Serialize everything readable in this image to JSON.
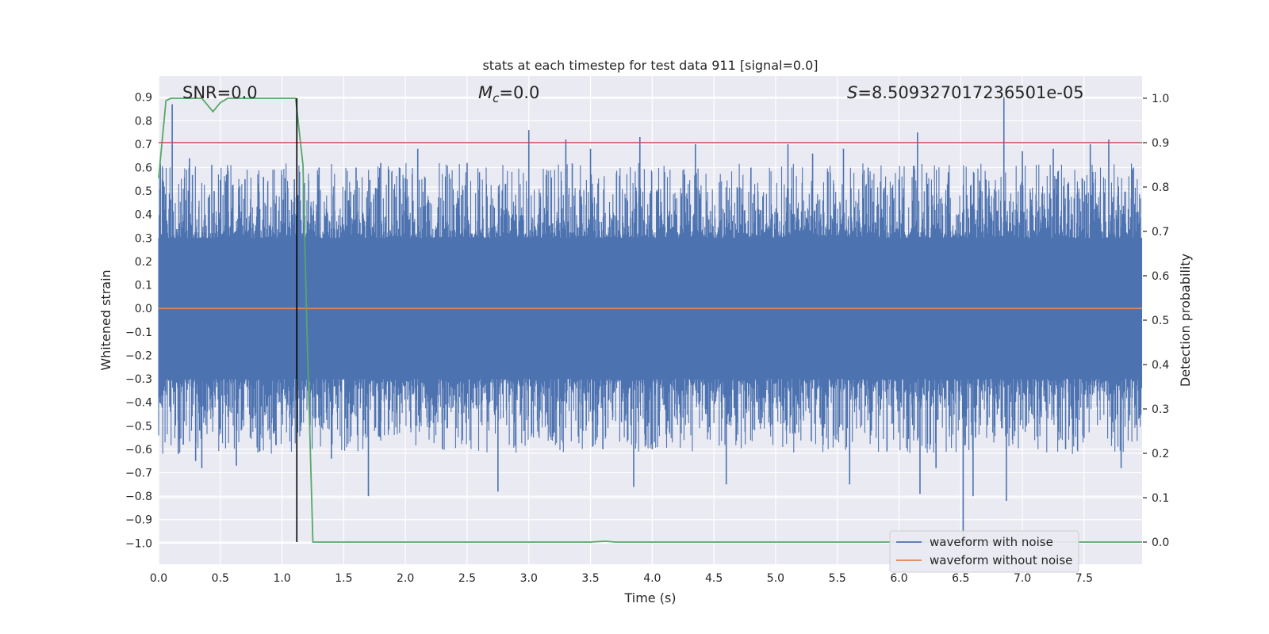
{
  "chart_data": {
    "type": "line",
    "title": "stats at each timestep for test data 911 [signal=0.0]",
    "xlabel": "Time (s)",
    "ylabel_left": "Whitened strain",
    "ylabel_right": "Detection probability",
    "xlim": [
      0,
      7.97
    ],
    "ylim_left": [
      -1.09,
      0.99
    ],
    "ylim_right": [
      -0.05,
      1.05
    ],
    "x_ticks": [
      "0.0",
      "0.5",
      "1.0",
      "1.5",
      "2.0",
      "2.5",
      "3.0",
      "3.5",
      "4.0",
      "4.5",
      "5.0",
      "5.5",
      "6.0",
      "6.5",
      "7.0",
      "7.5"
    ],
    "x_tick_values": [
      0,
      0.5,
      1,
      1.5,
      2,
      2.5,
      3,
      3.5,
      4,
      4.5,
      5,
      5.5,
      6,
      6.5,
      7,
      7.5
    ],
    "y_left_ticks": [
      "0.9",
      "0.8",
      "0.7",
      "0.6",
      "0.5",
      "0.4",
      "0.3",
      "0.2",
      "0.1",
      "0.0",
      "−0.1",
      "−0.2",
      "−0.3",
      "−0.4",
      "−0.5",
      "−0.6",
      "−0.7",
      "−0.8",
      "−0.9",
      "−1.0"
    ],
    "y_left_tick_values": [
      0.9,
      0.8,
      0.7,
      0.6,
      0.5,
      0.4,
      0.3,
      0.2,
      0.1,
      0.0,
      -0.1,
      -0.2,
      -0.3,
      -0.4,
      -0.5,
      -0.6,
      -0.7,
      -0.8,
      -0.9,
      -1.0
    ],
    "y_right_ticks": [
      "1.0",
      "0.9",
      "0.8",
      "0.7",
      "0.6",
      "0.5",
      "0.4",
      "0.3",
      "0.2",
      "0.1",
      "0.0"
    ],
    "y_right_tick_values": [
      1.0,
      0.9,
      0.8,
      0.7,
      0.6,
      0.5,
      0.4,
      0.3,
      0.2,
      0.1,
      0.0
    ],
    "annotations": {
      "snr": "SNR=0.0",
      "mc_symbol": "M",
      "mc_sub": "c",
      "mc_value": "=0.0",
      "s_symbol": "S",
      "s_value": "=8.509327017236501e-05"
    },
    "series": [
      {
        "name": "waveform with noise",
        "color": "#4c72b0",
        "axis": "left",
        "kind": "noise",
        "band": 0.3,
        "outliers": [
          [
            0.03,
            0.55
          ],
          [
            0.11,
            0.87
          ],
          [
            0.16,
            -0.62
          ],
          [
            0.2,
            -0.58
          ],
          [
            0.25,
            0.64
          ],
          [
            0.3,
            -0.65
          ],
          [
            0.35,
            -0.68
          ],
          [
            0.45,
            0.5
          ],
          [
            0.55,
            0.57
          ],
          [
            0.63,
            -0.67
          ],
          [
            0.7,
            0.55
          ],
          [
            0.85,
            0.56
          ],
          [
            0.95,
            -0.58
          ],
          [
            1.1,
            0.55
          ],
          [
            1.15,
            -0.5
          ],
          [
            1.3,
            0.6
          ],
          [
            1.4,
            -0.64
          ],
          [
            1.6,
            0.6
          ],
          [
            1.7,
            -0.8
          ],
          [
            1.8,
            0.62
          ],
          [
            2.1,
            0.68
          ],
          [
            2.3,
            -0.6
          ],
          [
            2.5,
            0.62
          ],
          [
            2.6,
            0.58
          ],
          [
            2.75,
            -0.78
          ],
          [
            3.0,
            0.76
          ],
          [
            3.3,
            0.72
          ],
          [
            3.5,
            0.68
          ],
          [
            3.6,
            -0.6
          ],
          [
            3.9,
            0.73
          ],
          [
            3.85,
            -0.76
          ],
          [
            4.0,
            -0.6
          ],
          [
            4.35,
            0.7
          ],
          [
            4.6,
            -0.75
          ],
          [
            4.8,
            0.6
          ],
          [
            5.1,
            0.7
          ],
          [
            5.3,
            0.66
          ],
          [
            5.55,
            0.68
          ],
          [
            5.6,
            -0.75
          ],
          [
            5.75,
            0.6
          ],
          [
            6.15,
            0.75
          ],
          [
            6.17,
            -0.79
          ],
          [
            6.3,
            -0.68
          ],
          [
            6.4,
            0.58
          ],
          [
            6.52,
            -0.98
          ],
          [
            6.6,
            -0.8
          ],
          [
            6.85,
            0.9
          ],
          [
            6.87,
            -0.82
          ],
          [
            7.0,
            0.67
          ],
          [
            7.25,
            0.68
          ],
          [
            7.35,
            -0.6
          ],
          [
            7.55,
            0.7
          ],
          [
            7.7,
            0.72
          ],
          [
            7.8,
            -0.68
          ],
          [
            7.9,
            0.6
          ]
        ]
      },
      {
        "name": "waveform without noise",
        "color": "#dd8452",
        "axis": "left",
        "kind": "flat",
        "value": 0.0
      },
      {
        "name": "detection probability",
        "color": "#55a868",
        "axis": "right",
        "kind": "line",
        "points": [
          [
            0,
            0.82
          ],
          [
            0.06,
            0.995
          ],
          [
            0.1,
            1.0
          ],
          [
            0.35,
            1.0
          ],
          [
            0.44,
            0.97
          ],
          [
            0.5,
            0.99
          ],
          [
            0.56,
            1.0
          ],
          [
            1.11,
            1.0
          ],
          [
            1.17,
            0.85
          ],
          [
            1.2,
            0.5
          ],
          [
            1.25,
            0.0
          ],
          [
            3.5,
            0.0
          ],
          [
            3.62,
            0.002
          ],
          [
            3.7,
            0.0
          ],
          [
            7.97,
            0.0
          ]
        ]
      },
      {
        "name": "threshold",
        "color": "#c44e52",
        "axis": "right",
        "kind": "hline",
        "value": 0.9
      },
      {
        "name": "detection time",
        "color": "#000000",
        "axis": "right",
        "kind": "vline",
        "x": 1.12,
        "y0": 0.0,
        "y1": 1.0
      }
    ],
    "legend": {
      "placement": "lower-right",
      "entries": [
        {
          "label": "waveform with noise",
          "color": "#4c72b0"
        },
        {
          "label": "waveform without noise",
          "color": "#dd8452"
        }
      ]
    },
    "style": {
      "plot_bg": "#eaeaf2",
      "grid_color": "#ffffff",
      "grid": true
    }
  }
}
